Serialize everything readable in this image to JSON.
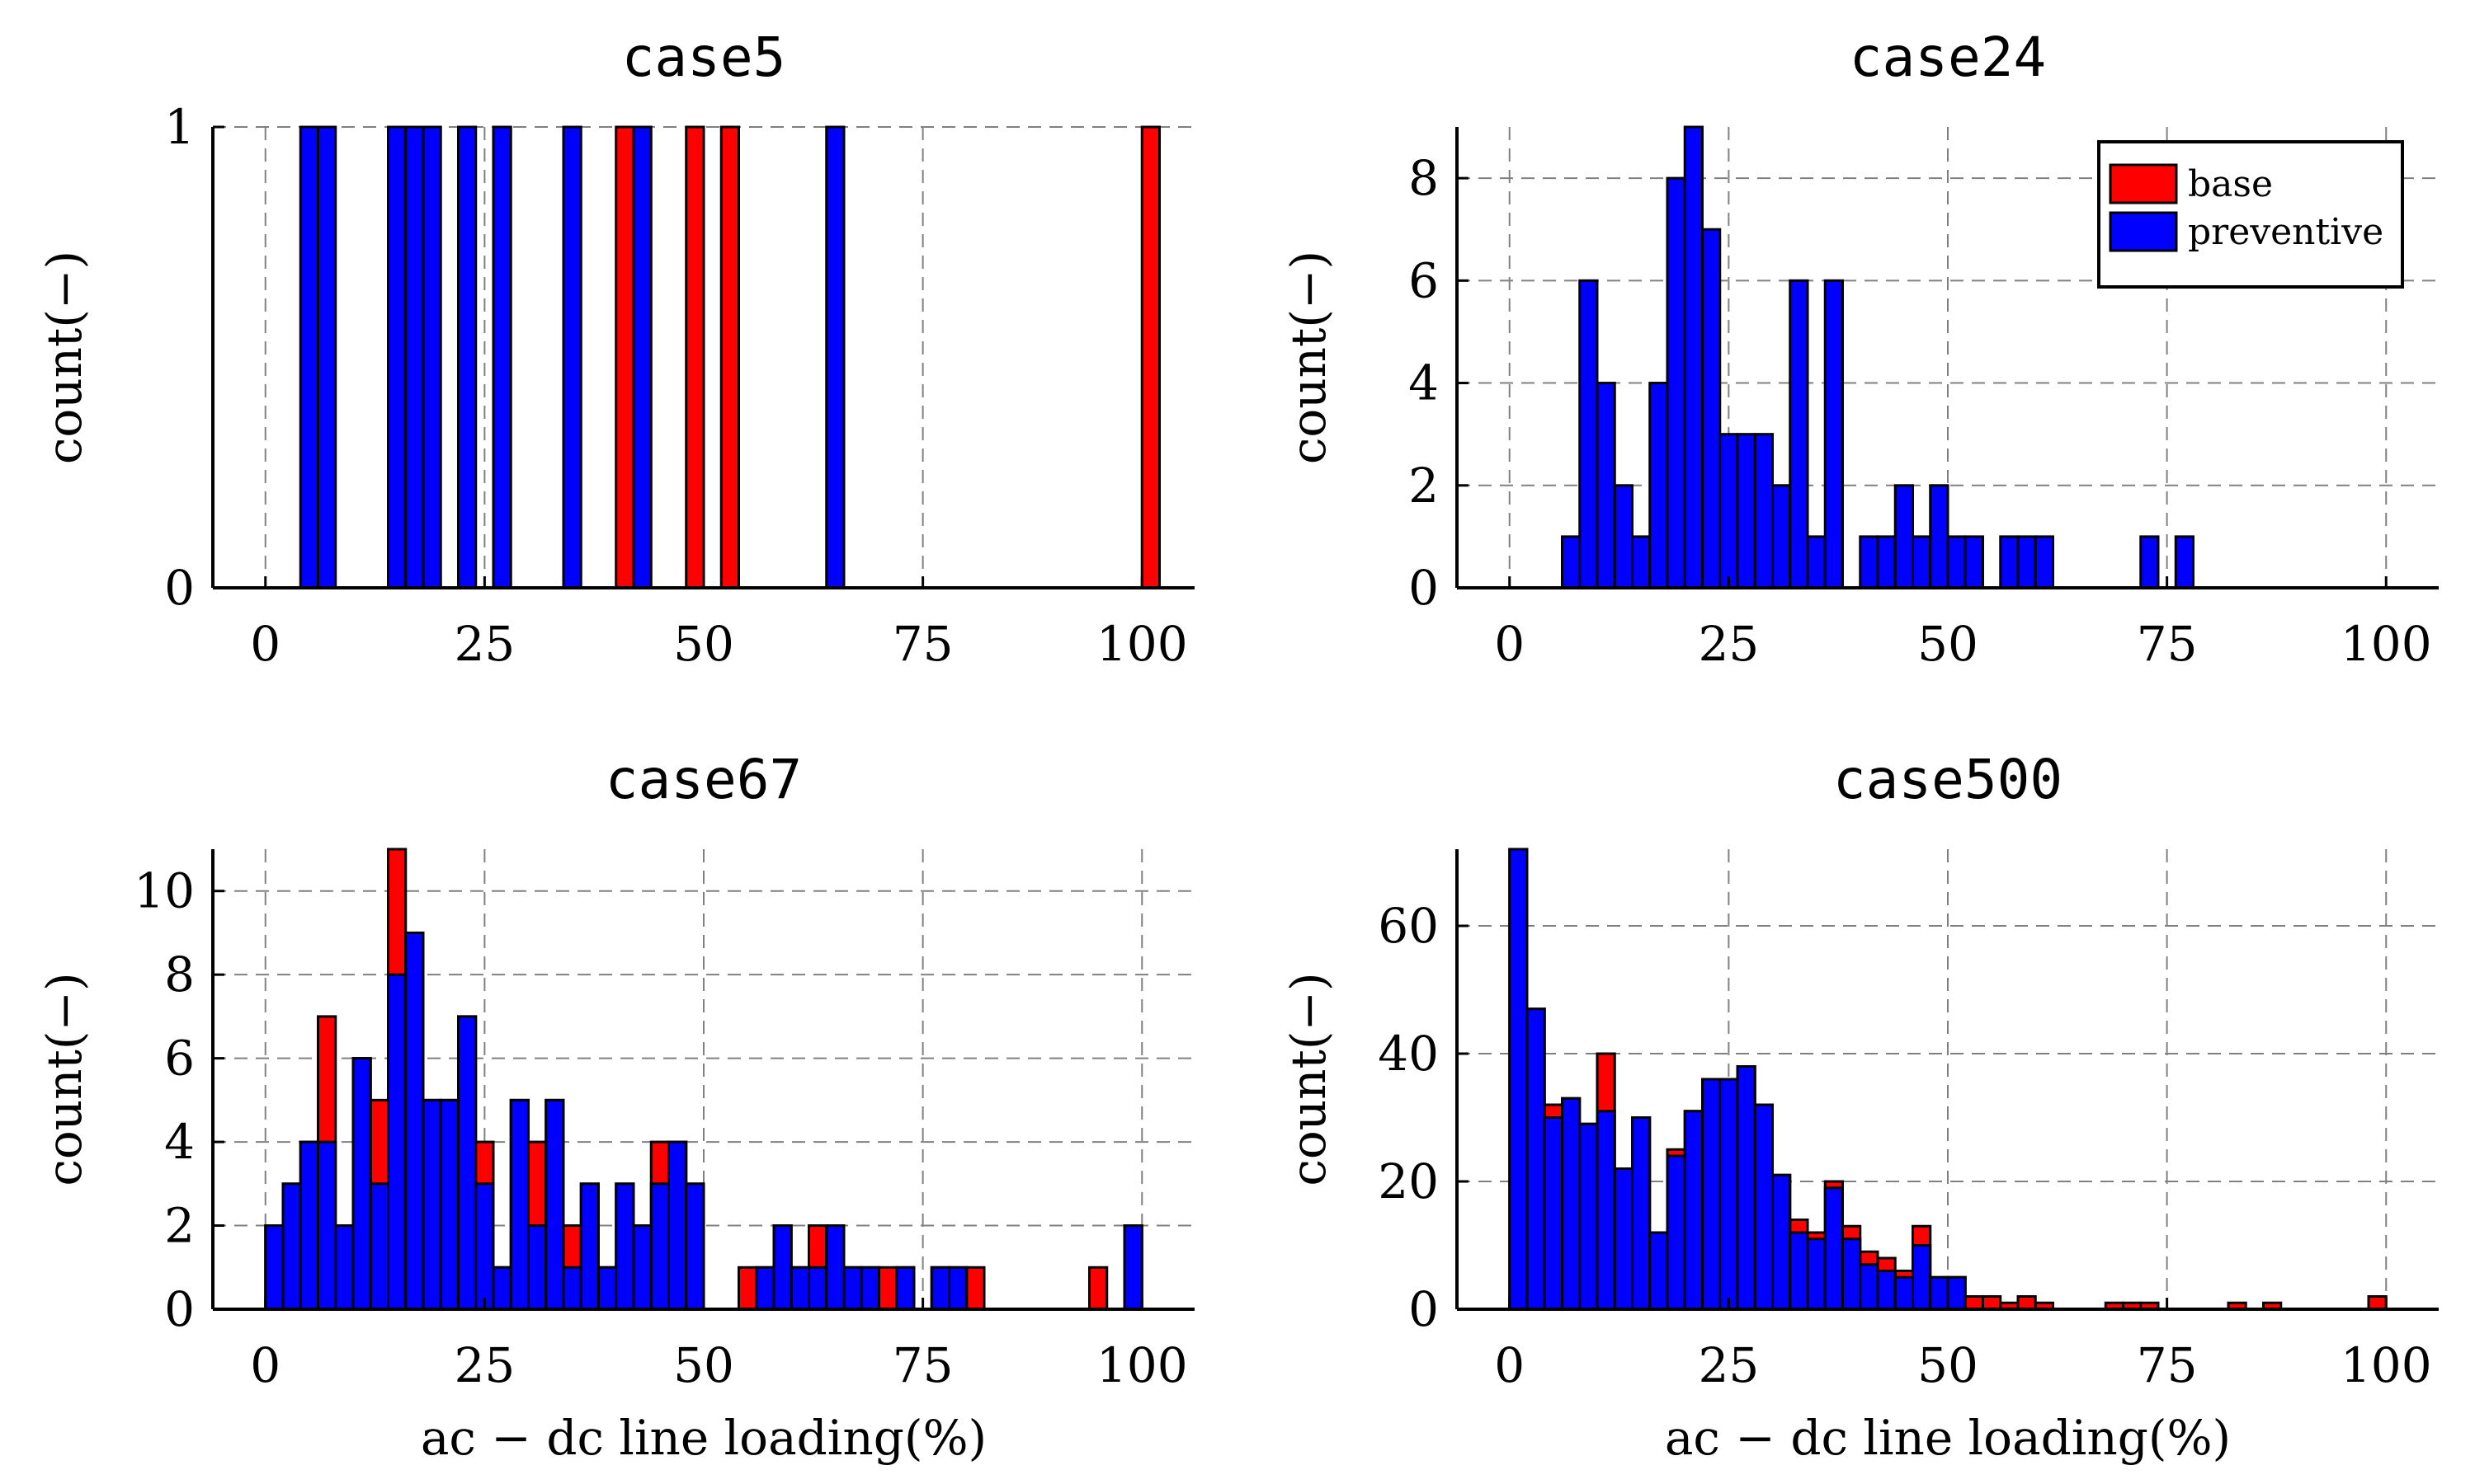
{
  "colors": {
    "base": "#ff0000",
    "preventive": "#0000ff",
    "grid": "#808080",
    "outline": "#000000"
  },
  "legend": {
    "placement": "top-right",
    "entries": [
      {
        "label": "base",
        "color": "#ff0000"
      },
      {
        "label": "preventive",
        "color": "#0000ff"
      }
    ]
  },
  "chart_data": [
    {
      "type": "bar",
      "title": "case5",
      "xlabel": "",
      "ylabel": "count(−)",
      "xlim": [
        -6,
        106
      ],
      "ylim": [
        0,
        1
      ],
      "xticks": [
        0,
        25,
        50,
        75,
        100
      ],
      "yticks": [
        0,
        1
      ],
      "grid": true,
      "bin_width": 2,
      "series": [
        {
          "name": "base",
          "bins": [
            [
              40,
              1
            ],
            [
              48,
              1
            ],
            [
              52,
              1
            ],
            [
              100,
              1
            ]
          ]
        },
        {
          "name": "preventive",
          "bins": [
            [
              4,
              1
            ],
            [
              6,
              1
            ],
            [
              14,
              1
            ],
            [
              16,
              1
            ],
            [
              18,
              1
            ],
            [
              22,
              1
            ],
            [
              26,
              1
            ],
            [
              34,
              1
            ],
            [
              42,
              1
            ],
            [
              64,
              1
            ]
          ]
        }
      ]
    },
    {
      "type": "bar",
      "title": "case24",
      "xlabel": "",
      "ylabel": "count(−)",
      "xlim": [
        -6,
        106
      ],
      "ylim": [
        0,
        9
      ],
      "xticks": [
        0,
        25,
        50,
        75,
        100
      ],
      "yticks": [
        0,
        2,
        4,
        6,
        8
      ],
      "grid": true,
      "bin_width": 2,
      "series": [
        {
          "name": "base",
          "bins": []
        },
        {
          "name": "preventive",
          "bins": [
            [
              6,
              1
            ],
            [
              8,
              6
            ],
            [
              10,
              4
            ],
            [
              12,
              2
            ],
            [
              14,
              1
            ],
            [
              16,
              4
            ],
            [
              18,
              8
            ],
            [
              20,
              9
            ],
            [
              22,
              7
            ],
            [
              24,
              3
            ],
            [
              26,
              3
            ],
            [
              28,
              3
            ],
            [
              30,
              2
            ],
            [
              32,
              6
            ],
            [
              34,
              1
            ],
            [
              36,
              6
            ],
            [
              40,
              1
            ],
            [
              42,
              1
            ],
            [
              44,
              2
            ],
            [
              46,
              1
            ],
            [
              48,
              2
            ],
            [
              50,
              1
            ],
            [
              52,
              1
            ],
            [
              56,
              1
            ],
            [
              58,
              1
            ],
            [
              60,
              1
            ],
            [
              72,
              1
            ],
            [
              76,
              1
            ]
          ]
        }
      ]
    },
    {
      "type": "bar",
      "title": "case67",
      "xlabel": "ac − dc line loading(%)",
      "ylabel": "count(−)",
      "xlim": [
        -6,
        106
      ],
      "ylim": [
        0,
        11
      ],
      "xticks": [
        0,
        25,
        50,
        75,
        100
      ],
      "yticks": [
        0,
        2,
        4,
        6,
        8,
        10
      ],
      "grid": true,
      "bin_width": 2,
      "series": [
        {
          "name": "base",
          "bins": [
            [
              0,
              2
            ],
            [
              2,
              3
            ],
            [
              4,
              4
            ],
            [
              6,
              7
            ],
            [
              8,
              2
            ],
            [
              10,
              6
            ],
            [
              12,
              5
            ],
            [
              14,
              11
            ],
            [
              16,
              9
            ],
            [
              18,
              5
            ],
            [
              20,
              5
            ],
            [
              22,
              7
            ],
            [
              24,
              4
            ],
            [
              26,
              1
            ],
            [
              28,
              5
            ],
            [
              30,
              4
            ],
            [
              32,
              5
            ],
            [
              34,
              2
            ],
            [
              36,
              3
            ],
            [
              38,
              1
            ],
            [
              40,
              3
            ],
            [
              42,
              2
            ],
            [
              44,
              4
            ],
            [
              46,
              4
            ],
            [
              48,
              3
            ],
            [
              54,
              1
            ],
            [
              56,
              1
            ],
            [
              58,
              2
            ],
            [
              60,
              1
            ],
            [
              62,
              2
            ],
            [
              64,
              2
            ],
            [
              66,
              1
            ],
            [
              68,
              1
            ],
            [
              70,
              1
            ],
            [
              72,
              1
            ],
            [
              76,
              1
            ],
            [
              78,
              1
            ],
            [
              80,
              1
            ],
            [
              94,
              1
            ],
            [
              98,
              2
            ]
          ]
        },
        {
          "name": "preventive",
          "bins": [
            [
              0,
              2
            ],
            [
              2,
              3
            ],
            [
              4,
              4
            ],
            [
              6,
              4
            ],
            [
              8,
              2
            ],
            [
              10,
              6
            ],
            [
              12,
              3
            ],
            [
              14,
              8
            ],
            [
              16,
              9
            ],
            [
              18,
              5
            ],
            [
              20,
              5
            ],
            [
              22,
              7
            ],
            [
              24,
              3
            ],
            [
              26,
              1
            ],
            [
              28,
              5
            ],
            [
              30,
              2
            ],
            [
              32,
              5
            ],
            [
              34,
              1
            ],
            [
              36,
              3
            ],
            [
              38,
              1
            ],
            [
              40,
              3
            ],
            [
              42,
              2
            ],
            [
              44,
              3
            ],
            [
              46,
              4
            ],
            [
              48,
              3
            ],
            [
              56,
              1
            ],
            [
              58,
              2
            ],
            [
              60,
              1
            ],
            [
              62,
              1
            ],
            [
              64,
              2
            ],
            [
              66,
              1
            ],
            [
              68,
              1
            ],
            [
              70,
              0
            ],
            [
              72,
              1
            ],
            [
              76,
              1
            ],
            [
              78,
              1
            ],
            [
              80,
              0
            ],
            [
              98,
              2
            ]
          ]
        }
      ]
    },
    {
      "type": "bar",
      "title": "case500",
      "xlabel": "ac − dc line loading(%)",
      "ylabel": "count(−)",
      "xlim": [
        -6,
        106
      ],
      "ylim": [
        0,
        72
      ],
      "xticks": [
        0,
        25,
        50,
        75,
        100
      ],
      "yticks": [
        0,
        20,
        40,
        60
      ],
      "grid": true,
      "bin_width": 2,
      "series": [
        {
          "name": "base",
          "bins": [
            [
              0,
              72
            ],
            [
              2,
              47
            ],
            [
              4,
              32
            ],
            [
              6,
              33
            ],
            [
              8,
              29
            ],
            [
              10,
              40
            ],
            [
              12,
              22
            ],
            [
              14,
              30
            ],
            [
              16,
              12
            ],
            [
              18,
              25
            ],
            [
              20,
              31
            ],
            [
              22,
              36
            ],
            [
              24,
              36
            ],
            [
              26,
              38
            ],
            [
              28,
              32
            ],
            [
              30,
              21
            ],
            [
              32,
              14
            ],
            [
              34,
              12
            ],
            [
              36,
              20
            ],
            [
              38,
              13
            ],
            [
              40,
              9
            ],
            [
              42,
              8
            ],
            [
              44,
              6
            ],
            [
              46,
              13
            ],
            [
              48,
              5
            ],
            [
              50,
              5
            ],
            [
              52,
              2
            ],
            [
              54,
              2
            ],
            [
              56,
              1
            ],
            [
              58,
              2
            ],
            [
              60,
              1
            ],
            [
              68,
              1
            ],
            [
              70,
              1
            ],
            [
              72,
              1
            ],
            [
              82,
              1
            ],
            [
              86,
              1
            ],
            [
              98,
              2
            ]
          ]
        },
        {
          "name": "preventive",
          "bins": [
            [
              0,
              72
            ],
            [
              2,
              47
            ],
            [
              4,
              30
            ],
            [
              6,
              33
            ],
            [
              8,
              29
            ],
            [
              10,
              31
            ],
            [
              12,
              22
            ],
            [
              14,
              30
            ],
            [
              16,
              12
            ],
            [
              18,
              24
            ],
            [
              20,
              31
            ],
            [
              22,
              36
            ],
            [
              24,
              36
            ],
            [
              26,
              38
            ],
            [
              28,
              32
            ],
            [
              30,
              21
            ],
            [
              32,
              12
            ],
            [
              34,
              11
            ],
            [
              36,
              19
            ],
            [
              38,
              11
            ],
            [
              40,
              7
            ],
            [
              42,
              6
            ],
            [
              44,
              5
            ],
            [
              46,
              10
            ],
            [
              48,
              5
            ],
            [
              50,
              5
            ]
          ]
        }
      ]
    }
  ]
}
